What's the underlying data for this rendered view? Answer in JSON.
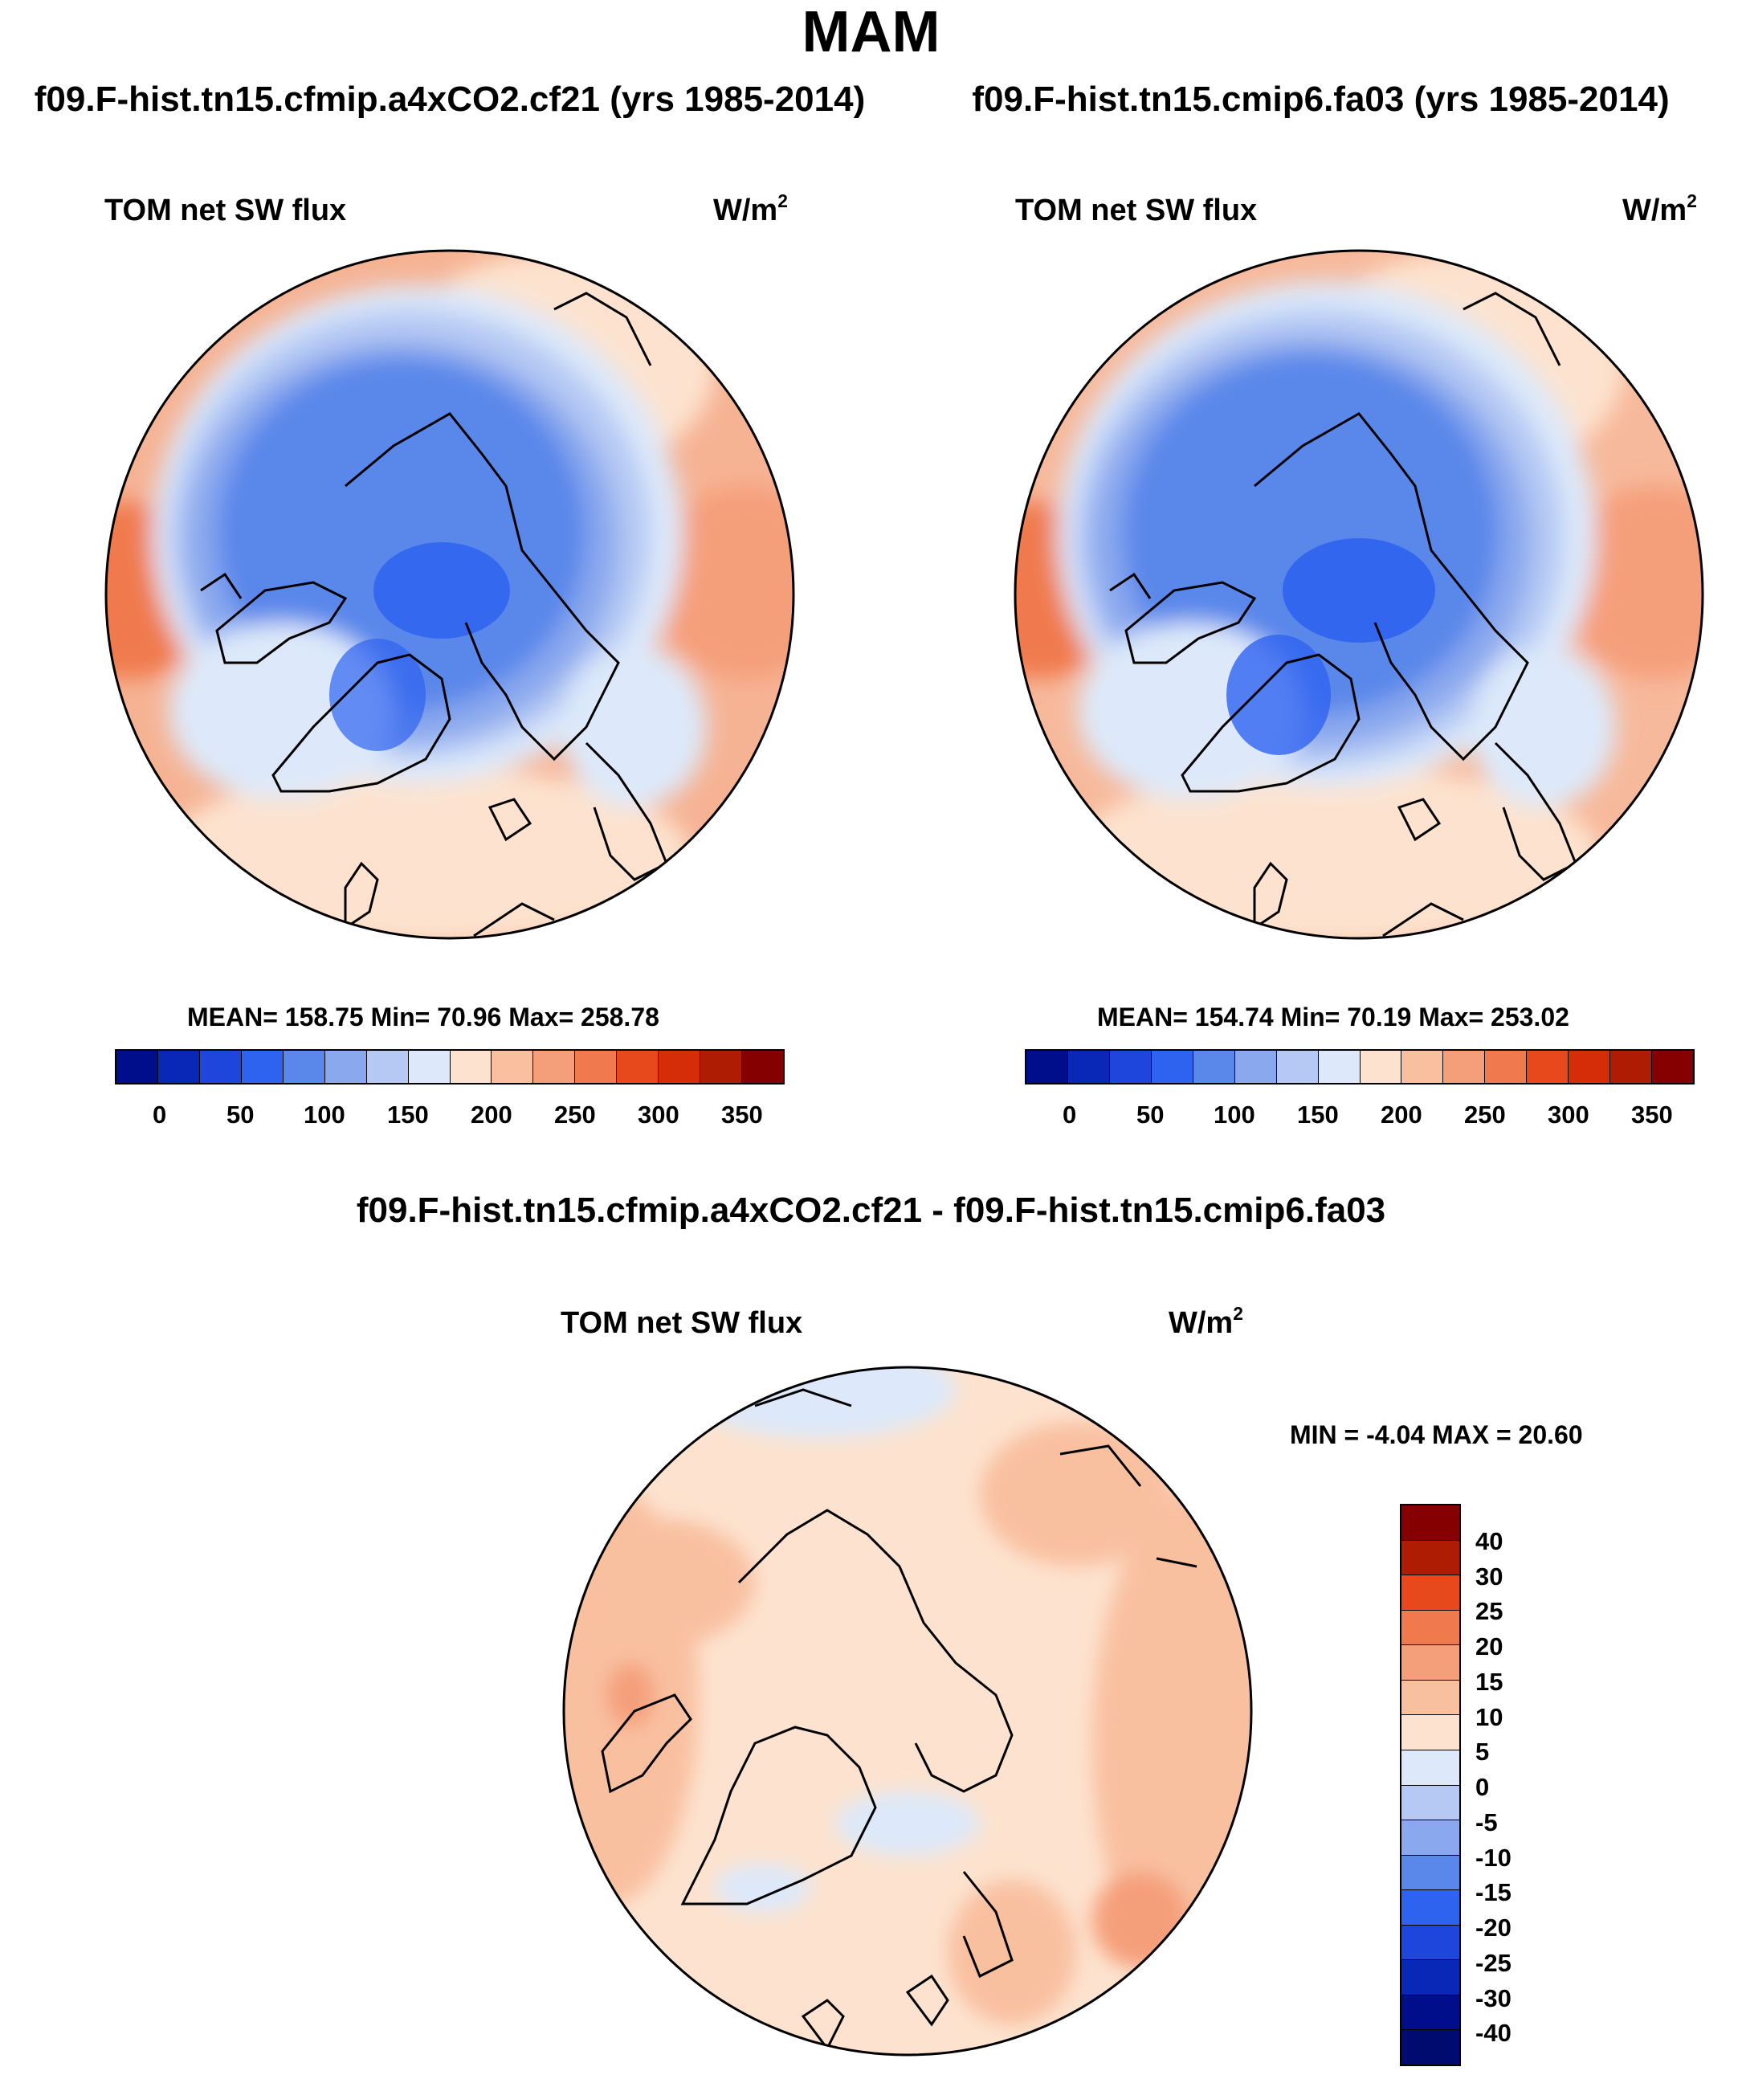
{
  "figure": {
    "title": "MAM"
  },
  "panels": [
    {
      "case_title": "f09.F-hist.tn15.cfmip.a4xCO2.cf21 (yrs 1985-2014)",
      "variable": "TOM net SW flux",
      "units_base": "W/m",
      "units_exp": "2",
      "stats": "MEAN= 158.75  Min=  70.96  Max= 258.78"
    },
    {
      "case_title": "f09.F-hist.tn15.cmip6.fa03 (yrs 1985-2014)",
      "variable": "TOM net SW flux",
      "units_base": "W/m",
      "units_exp": "2",
      "stats": "MEAN= 154.74  Min=  70.19  Max= 253.02"
    }
  ],
  "diff_panel": {
    "title": "f09.F-hist.tn15.cfmip.a4xCO2.cf21 - f09.F-hist.tn15.cmip6.fa03",
    "variable": "TOM net SW flux",
    "units_base": "W/m",
    "units_exp": "2",
    "stats": "MIN =  -4.04 MAX =  20.60"
  },
  "chart_data": [
    {
      "type": "heatmap",
      "projection": "north polar stereographic",
      "title": "f09.F-hist.tn15.cfmip.a4xCO2.cf21 (yrs 1985-2014)",
      "variable": "TOM net SW flux",
      "units": "W/m2",
      "mean": 158.75,
      "min": 70.96,
      "max": 258.78,
      "colorbar_ticks": [
        "0",
        "50",
        "100",
        "150",
        "200",
        "250",
        "300",
        "350"
      ],
      "colorbar_colors": [
        "#000e8c",
        "#0a28b8",
        "#1e46dc",
        "#2e63f0",
        "#5a87ea",
        "#8aa8ee",
        "#b5c9f4",
        "#dde9fa",
        "#fde3cf",
        "#f9c0a0",
        "#f59f7a",
        "#f07a4e",
        "#e8491c",
        "#d42d08",
        "#ae1c04",
        "#850000"
      ]
    },
    {
      "type": "heatmap",
      "projection": "north polar stereographic",
      "title": "f09.F-hist.tn15.cmip6.fa03 (yrs 1985-2014)",
      "variable": "TOM net SW flux",
      "units": "W/m2",
      "mean": 154.74,
      "min": 70.19,
      "max": 253.02,
      "colorbar_ticks": [
        "0",
        "50",
        "100",
        "150",
        "200",
        "250",
        "300",
        "350"
      ],
      "colorbar_colors": [
        "#000e8c",
        "#0a28b8",
        "#1e46dc",
        "#2e63f0",
        "#5a87ea",
        "#8aa8ee",
        "#b5c9f4",
        "#dde9fa",
        "#fde3cf",
        "#f9c0a0",
        "#f59f7a",
        "#f07a4e",
        "#e8491c",
        "#d42d08",
        "#ae1c04",
        "#850000"
      ]
    },
    {
      "type": "heatmap",
      "projection": "north polar stereographic",
      "title": "f09.F-hist.tn15.cfmip.a4xCO2.cf21 - f09.F-hist.tn15.cmip6.fa03",
      "variable": "TOM net SW flux",
      "units": "W/m2",
      "min": -4.04,
      "max": 20.6,
      "colorbar_ticks": [
        "40",
        "30",
        "25",
        "20",
        "15",
        "10",
        "5",
        "0",
        "-5",
        "-10",
        "-15",
        "-20",
        "-25",
        "-30",
        "-40"
      ],
      "colorbar_colors": [
        "#850000",
        "#ae1c04",
        "#e8491c",
        "#f07a4e",
        "#f59f7a",
        "#f9c0a0",
        "#fde3cf",
        "#dde9fa",
        "#b5c9f4",
        "#8aa8ee",
        "#5a87ea",
        "#2e63f0",
        "#1e46dc",
        "#0a28b8",
        "#000e8c",
        "#000b70"
      ]
    }
  ]
}
